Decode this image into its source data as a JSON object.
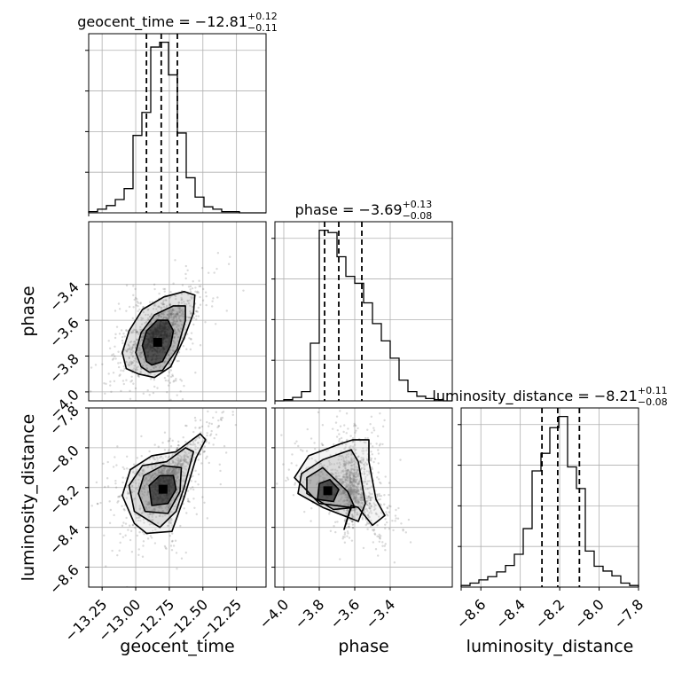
{
  "chart_data": {
    "type": "corner",
    "parameters": [
      "geocent_time",
      "phase",
      "luminosity_distance"
    ],
    "titles": [
      {
        "param": "geocent_time",
        "prefix": "geocent_time = ",
        "value": "−12.81",
        "plus": "+0.12",
        "minus": "−0.11"
      },
      {
        "param": "phase",
        "prefix": "phase = ",
        "value": "−3.69",
        "plus": "+0.13",
        "minus": "−0.08"
      },
      {
        "param": "luminosity_distance",
        "prefix": "luminosity_distance = ",
        "value": "−8.21",
        "plus": "+0.11",
        "minus": "−0.08"
      }
    ],
    "axes": {
      "geocent_time": {
        "range": [
          -13.35,
          -12.03
        ],
        "ticks": [
          -13.25,
          -13.0,
          -12.75,
          -12.5,
          -12.25
        ],
        "tick_labels": [
          "−13.25",
          "−13.00",
          "−12.75",
          "−12.50",
          "−12.25"
        ],
        "label": "geocent_time"
      },
      "phase": {
        "range": [
          -4.05,
          -3.05
        ],
        "ticks": [
          -4.0,
          -3.8,
          -3.6,
          -3.4
        ],
        "tick_labels": [
          "−4.0",
          "−3.8",
          "−3.6",
          "−3.4"
        ],
        "label": "phase"
      },
      "luminosity_distance": {
        "range": [
          -8.7,
          -7.8
        ],
        "ticks": [
          -8.6,
          -8.4,
          -8.2,
          -8.0,
          -7.8
        ],
        "tick_labels": [
          "−8.6",
          "−8.4",
          "−8.2",
          "−8.0",
          "−7.8"
        ],
        "label": "luminosity_distance"
      }
    },
    "histograms": {
      "geocent_time": {
        "bin_edges": [
          -13.35,
          -13.284,
          -13.218,
          -13.152,
          -13.086,
          -13.02,
          -12.954,
          -12.888,
          -12.822,
          -12.756,
          -12.69,
          -12.624,
          -12.558,
          -12.492,
          -12.426,
          -12.36,
          -12.294,
          -12.228,
          -12.162,
          -12.096,
          -12.03
        ],
        "counts": [
          1,
          3,
          6,
          11,
          20,
          64,
          83,
          137,
          141,
          114,
          66,
          29,
          13,
          5,
          3,
          1,
          1,
          0,
          0,
          0
        ],
        "quantiles": [
          -12.92,
          -12.81,
          -12.69
        ]
      },
      "phase": {
        "bin_edges": [
          -4.05,
          -4.0,
          -3.95,
          -3.9,
          -3.85,
          -3.8,
          -3.75,
          -3.7,
          -3.65,
          -3.6,
          -3.55,
          -3.5,
          -3.45,
          -3.4,
          -3.35,
          -3.3,
          -3.25,
          -3.2,
          -3.15,
          -3.1,
          -3.05
        ],
        "counts": [
          0,
          1,
          3,
          8,
          50,
          148,
          146,
          125,
          108,
          102,
          85,
          67,
          52,
          37,
          18,
          8,
          4,
          2,
          1,
          0
        ],
        "quantiles": [
          -3.77,
          -3.69,
          -3.56
        ]
      },
      "luminosity_distance": {
        "bin_edges": [
          -8.7,
          -8.655,
          -8.61,
          -8.565,
          -8.52,
          -8.475,
          -8.43,
          -8.385,
          -8.34,
          -8.295,
          -8.25,
          -8.205,
          -8.16,
          -8.115,
          -8.07,
          -8.025,
          -7.98,
          -7.935,
          -7.89,
          -7.845,
          -7.8
        ],
        "counts": [
          2,
          5,
          9,
          13,
          19,
          27,
          41,
          73,
          145,
          167,
          199,
          213,
          150,
          123,
          45,
          26,
          20,
          14,
          5,
          2
        ],
        "quantiles": [
          -8.29,
          -8.21,
          -8.1
        ]
      }
    },
    "x_tick_labels": [
      "−13.25",
      "−13.00",
      "−12.75",
      "−12.50",
      "−12.25",
      "−4.0",
      "−3.8",
      "−3.6",
      "−3.4",
      "−8.6",
      "−8.4",
      "−8.2",
      "−8.0",
      "−7.8"
    ],
    "y_tick_labels": [
      "−3.4",
      "−3.6",
      "−3.8",
      "−4.0",
      "−7.8",
      "−8.0",
      "−8.2",
      "−8.4",
      "−8.6"
    ],
    "x_labels": [
      "geocent_time",
      "phase",
      "luminosity_distance"
    ],
    "y_labels": [
      "phase",
      "luminosity_distance"
    ],
    "joint_contours": [
      {
        "x": "geocent_time",
        "y": "phase",
        "levels": [
          [
            [
              -12.92,
              -3.83
            ],
            [
              -12.88,
              -3.85
            ],
            [
              -12.8,
              -3.83
            ],
            [
              -12.74,
              -3.74
            ],
            [
              -12.72,
              -3.66
            ],
            [
              -12.76,
              -3.6
            ],
            [
              -12.84,
              -3.6
            ],
            [
              -12.92,
              -3.66
            ],
            [
              -12.95,
              -3.74
            ]
          ],
          [
            [
              -12.96,
              -3.86
            ],
            [
              -12.9,
              -3.89
            ],
            [
              -12.8,
              -3.88
            ],
            [
              -12.69,
              -3.76
            ],
            [
              -12.63,
              -3.6
            ],
            [
              -12.63,
              -3.52
            ],
            [
              -12.72,
              -3.52
            ],
            [
              -12.86,
              -3.57
            ],
            [
              -12.96,
              -3.67
            ],
            [
              -13.0,
              -3.78
            ]
          ],
          [
            [
              -13.07,
              -3.87
            ],
            [
              -12.98,
              -3.9
            ],
            [
              -12.86,
              -3.92
            ],
            [
              -12.74,
              -3.86
            ],
            [
              -12.64,
              -3.7
            ],
            [
              -12.57,
              -3.56
            ],
            [
              -12.56,
              -3.46
            ],
            [
              -12.64,
              -3.44
            ],
            [
              -12.79,
              -3.47
            ],
            [
              -12.95,
              -3.54
            ],
            [
              -13.05,
              -3.66
            ],
            [
              -13.1,
              -3.78
            ]
          ]
        ]
      },
      {
        "x": "geocent_time",
        "y": "luminosity_distance",
        "levels": [
          [
            [
              -12.88,
              -8.29
            ],
            [
              -12.76,
              -8.28
            ],
            [
              -12.7,
              -8.21
            ],
            [
              -12.72,
              -8.14
            ],
            [
              -12.82,
              -8.14
            ],
            [
              -12.9,
              -8.19
            ]
          ],
          [
            [
              -12.93,
              -8.32
            ],
            [
              -12.76,
              -8.33
            ],
            [
              -12.67,
              -8.22
            ],
            [
              -12.66,
              -8.1
            ],
            [
              -12.8,
              -8.09
            ],
            [
              -12.94,
              -8.14
            ],
            [
              -12.98,
              -8.23
            ]
          ],
          [
            [
              -13.01,
              -8.32
            ],
            [
              -12.82,
              -8.4
            ],
            [
              -12.7,
              -8.32
            ],
            [
              -12.64,
              -8.2
            ],
            [
              -12.57,
              -8.02
            ],
            [
              -12.63,
              -8.0
            ],
            [
              -12.77,
              -8.07
            ],
            [
              -12.95,
              -8.09
            ],
            [
              -13.05,
              -8.19
            ]
          ],
          [
            [
              -13.01,
              -8.38
            ],
            [
              -12.92,
              -8.43
            ],
            [
              -12.73,
              -8.42
            ],
            [
              -12.64,
              -8.25
            ],
            [
              -12.55,
              -8.05
            ],
            [
              -12.48,
              -7.96
            ],
            [
              -12.52,
              -7.93
            ],
            [
              -12.7,
              -8.02
            ],
            [
              -12.88,
              -8.04
            ],
            [
              -13.04,
              -8.11
            ],
            [
              -13.1,
              -8.24
            ]
          ]
        ]
      },
      {
        "x": "phase",
        "y": "luminosity_distance",
        "levels": [
          [
            [
              -3.81,
              -8.26
            ],
            [
              -3.72,
              -8.27
            ],
            [
              -3.69,
              -8.21
            ],
            [
              -3.74,
              -8.16
            ],
            [
              -3.8,
              -8.18
            ]
          ],
          [
            [
              -3.87,
              -8.23
            ],
            [
              -3.72,
              -8.31
            ],
            [
              -3.6,
              -8.3
            ],
            [
              -3.64,
              -8.22
            ],
            [
              -3.78,
              -8.1
            ],
            [
              -3.87,
              -8.15
            ]
          ],
          [
            [
              -3.92,
              -8.23
            ],
            [
              -3.78,
              -8.3
            ],
            [
              -3.58,
              -8.37
            ],
            [
              -3.54,
              -8.28
            ],
            [
              -3.58,
              -8.07
            ],
            [
              -3.62,
              -8.01
            ],
            [
              -3.78,
              -8.06
            ],
            [
              -3.9,
              -8.13
            ]
          ],
          [
            [
              -3.94,
              -8.15
            ],
            [
              -3.86,
              -8.04
            ],
            [
              -3.68,
              -7.98
            ],
            [
              -3.61,
              -7.96
            ],
            [
              -3.52,
              -7.96
            ],
            [
              -3.52,
              -8.07
            ],
            [
              -3.48,
              -8.26
            ],
            [
              -3.43,
              -8.34
            ],
            [
              -3.5,
              -8.39
            ],
            [
              -3.58,
              -8.3
            ],
            [
              -3.62,
              -8.29
            ],
            [
              -3.66,
              -8.41
            ],
            [
              -3.62,
              -8.3
            ],
            [
              -3.8,
              -8.28
            ]
          ]
        ]
      }
    ]
  }
}
